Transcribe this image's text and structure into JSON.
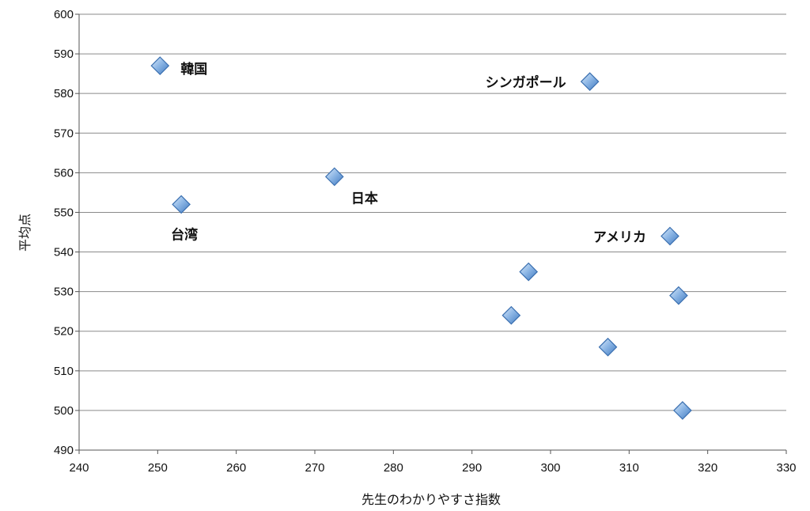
{
  "chart_data": {
    "type": "scatter",
    "title": "",
    "xlabel": "先生のわかりやすさ指数",
    "ylabel": "平均点",
    "xlim": [
      240,
      330
    ],
    "ylim": [
      490,
      600
    ],
    "x_ticks": [
      "240",
      "250",
      "260",
      "270",
      "280",
      "290",
      "300",
      "310",
      "320",
      "330"
    ],
    "y_ticks": [
      "490",
      "500",
      "510",
      "520",
      "530",
      "540",
      "550",
      "560",
      "570",
      "580",
      "590",
      "600"
    ],
    "grid": "horizontal",
    "legend": "none",
    "marker": "diamond",
    "marker_color": "#6fa3d9",
    "points": [
      {
        "x": 250.3,
        "y": 587,
        "label": "韓国",
        "label_pos": "right"
      },
      {
        "x": 305,
        "y": 583,
        "label": "シンガポール",
        "label_pos": "left"
      },
      {
        "x": 272.5,
        "y": 559,
        "label": "日本",
        "label_pos": "below-right"
      },
      {
        "x": 253,
        "y": 552,
        "label": "台湾",
        "label_pos": "below"
      },
      {
        "x": 315.2,
        "y": 544,
        "label": "アメリカ",
        "label_pos": "left"
      },
      {
        "x": 297.2,
        "y": 535,
        "label": ""
      },
      {
        "x": 316.3,
        "y": 529,
        "label": ""
      },
      {
        "x": 295,
        "y": 524,
        "label": ""
      },
      {
        "x": 307.3,
        "y": 516,
        "label": ""
      },
      {
        "x": 316.8,
        "y": 500,
        "label": ""
      }
    ]
  }
}
